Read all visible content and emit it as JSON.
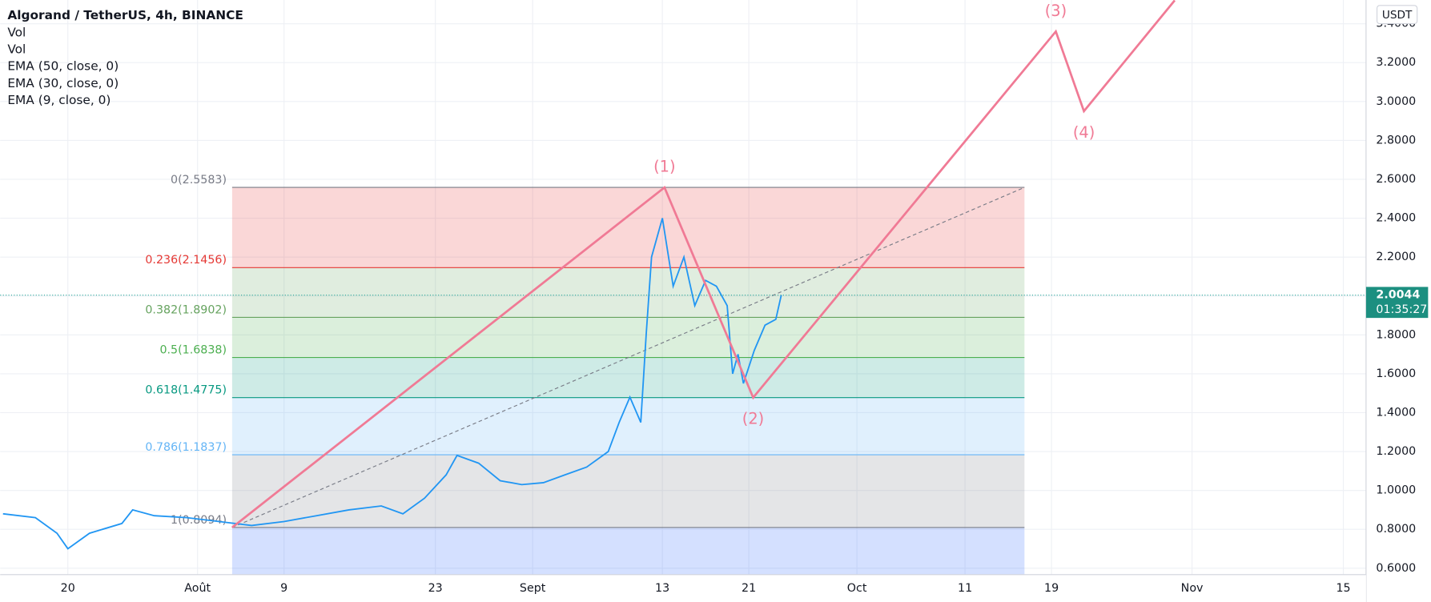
{
  "chart_data": {
    "type": "line",
    "title": "Algorand / TetherUS, 4h, BINANCE",
    "legend": [
      "Vol",
      "Vol",
      "EMA (50, close, 0)",
      "EMA (30, close, 0)",
      "EMA (9, close, 0)"
    ],
    "currency": "USDT",
    "color": "#2196f3",
    "x": [
      13,
      16,
      18,
      19,
      21,
      24,
      25,
      27,
      30,
      33,
      36,
      39,
      42,
      45,
      48,
      50,
      52,
      54,
      55,
      57,
      59,
      61,
      63,
      65,
      67,
      69,
      70,
      71,
      72,
      72.5,
      73,
      74,
      75,
      76,
      77,
      78,
      79,
      80,
      80.5,
      81,
      81.5,
      82.5,
      83.5,
      84.5,
      85
    ],
    "values": [
      0.88,
      0.86,
      0.78,
      0.7,
      0.78,
      0.83,
      0.9,
      0.87,
      0.86,
      0.84,
      0.82,
      0.84,
      0.87,
      0.9,
      0.92,
      0.88,
      0.96,
      1.08,
      1.18,
      1.14,
      1.05,
      1.03,
      1.04,
      1.08,
      1.12,
      1.2,
      1.35,
      1.48,
      1.35,
      1.8,
      2.2,
      2.4,
      2.05,
      2.2,
      1.95,
      2.08,
      2.05,
      1.95,
      1.6,
      1.7,
      1.55,
      1.72,
      1.85,
      1.88,
      2.0044
    ],
    "xlim": [
      12.74,
      139.1
    ],
    "ylim": [
      0.567,
      3.522
    ],
    "xticks": [
      {
        "value": 19,
        "label": "20"
      },
      {
        "value": 31,
        "label": "Août"
      },
      {
        "value": 39,
        "label": "9"
      },
      {
        "value": 53,
        "label": "23"
      },
      {
        "value": 62,
        "label": "Sept"
      },
      {
        "value": 74,
        "label": "13"
      },
      {
        "value": 82,
        "label": "21"
      },
      {
        "value": 92,
        "label": "Oct"
      },
      {
        "value": 102,
        "label": "11"
      },
      {
        "value": 110,
        "label": "19"
      },
      {
        "value": 123,
        "label": "Nov"
      },
      {
        "value": 137,
        "label": "15"
      }
    ],
    "yticks": [
      {
        "value": 0.6,
        "label": "0.6000"
      },
      {
        "value": 0.8,
        "label": "0.8000"
      },
      {
        "value": 1.0,
        "label": "1.0000"
      },
      {
        "value": 1.2,
        "label": "1.2000"
      },
      {
        "value": 1.4,
        "label": "1.4000"
      },
      {
        "value": 1.6,
        "label": "1.6000"
      },
      {
        "value": 1.8,
        "label": "1.8000"
      },
      {
        "value": 2.0,
        "label": "2.0000"
      },
      {
        "value": 2.2,
        "label": "2.2000"
      },
      {
        "value": 2.4,
        "label": "2.4000"
      },
      {
        "value": 2.6,
        "label": "2.6000"
      },
      {
        "value": 2.8,
        "label": "2.8000"
      },
      {
        "value": 3.0,
        "label": "3.0000"
      },
      {
        "value": 3.2,
        "label": "3.2000"
      },
      {
        "value": 3.4,
        "label": "3.4000"
      }
    ],
    "grid": true,
    "fib_x": [
      34.2,
      107.5
    ],
    "fib_levels": [
      {
        "value": 2.5583,
        "label": "0(2.5583)",
        "color": "#787b86"
      },
      {
        "value": 2.1456,
        "label": "0.236(2.1456)",
        "color": "#e53935"
      },
      {
        "value": 1.8902,
        "label": "0.382(1.8902)",
        "color": "#66a35f"
      },
      {
        "value": 1.6838,
        "label": "0.5(1.6838)",
        "color": "#4caf50"
      },
      {
        "value": 1.4775,
        "label": "0.618(1.4775)",
        "color": "#089981"
      },
      {
        "value": 1.1837,
        "label": "0.786(1.1837)",
        "color": "#64b5f6"
      },
      {
        "value": 0.8094,
        "label": "1(0.8094)",
        "color": "#787b86"
      }
    ],
    "wave_color": "#f07a95",
    "wave_path": {
      "x": [
        34.2,
        74.2,
        82.4,
        110.4,
        113.0,
        121.4
      ],
      "y": [
        0.8094,
        2.5583,
        1.4775,
        3.36,
        2.95,
        3.52
      ]
    },
    "wave_labels": [
      "(1)",
      "(2)",
      "(3)",
      "(4)"
    ],
    "last_price": {
      "value": 2.0044,
      "label": "2.0044"
    },
    "countdown": "01:35:27"
  }
}
